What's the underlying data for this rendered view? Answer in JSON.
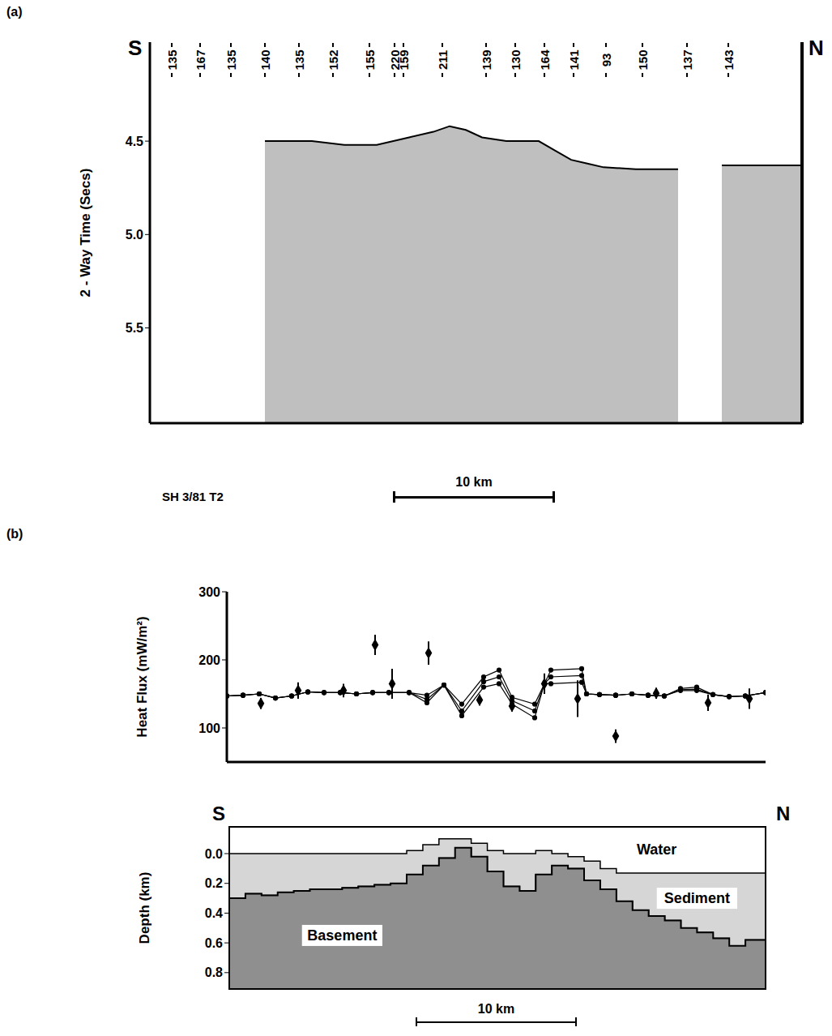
{
  "chart_data": [
    {
      "type": "seismic_section",
      "panel": "(a)",
      "y_label": "2 - Way Time (Secs)",
      "left_label": "S",
      "right_label": "N",
      "xlim": [
        0,
        40.25
      ],
      "ylim": [
        3.97,
        6.01
      ],
      "yticks": [
        4.5,
        {
          "value": 5,
          "label": "5.0"
        },
        5.5
      ],
      "tick_labels": "y",
      "site_labels": {
        "x": [
          1.35,
          3.1,
          5.0,
          7.1,
          9.2,
          11.3,
          13.55,
          15.1,
          15.65,
          18.05,
          20.75,
          22.55,
          24.35,
          26.15,
          28.15,
          30.4,
          33.15,
          35.7
        ],
        "values": [
          135,
          167,
          135,
          140,
          135,
          152,
          155,
          220,
          159,
          211,
          139,
          130,
          164,
          141,
          93,
          150,
          137,
          143
        ]
      },
      "seafloor": {
        "color": "#000000",
        "x": [
          7.1,
          8,
          10,
          12,
          14,
          16,
          17.5,
          18.5,
          19.5,
          20.5,
          22,
          24,
          25,
          26,
          27,
          28,
          30,
          32.6,
          33,
          35.3,
          36,
          38,
          40.25
        ],
        "values": [
          4.5,
          4.5,
          4.5,
          4.52,
          4.52,
          4.48,
          4.45,
          4.42,
          4.44,
          4.48,
          4.5,
          4.5,
          4.55,
          4.6,
          4.62,
          4.64,
          4.65,
          4.65,
          null,
          4.63,
          4.63,
          4.63,
          4.63
        ]
      },
      "profile_name": "SH 3/81 T2",
      "scale_bar": {
        "length": 10,
        "label": "10 km"
      }
    },
    {
      "type": "scatter_line",
      "panel": "(b)",
      "y_label": "Heat Flux (mW/m²)",
      "xlim": [
        0,
        33.25
      ],
      "ylim": [
        50,
        300
      ],
      "yticks": [
        100,
        200,
        300
      ],
      "tick_labels": "y",
      "measurements": {
        "color": "#000000",
        "marker": "diamond",
        "x": [
          2.1,
          4.4,
          7.2,
          9.15,
          10.2,
          12.45,
          15.6,
          17.6,
          19.6,
          21.65,
          24.0,
          26.5,
          29.7,
          32.25
        ],
        "values": [
          136,
          155,
          155,
          222,
          165,
          210,
          141,
          132,
          165,
          143,
          88,
          151,
          137,
          143
        ],
        "errors": [
          8,
          12,
          10,
          15,
          22,
          17,
          8,
          8,
          15,
          27,
          10,
          8,
          12,
          15
        ]
      },
      "model": {
        "x": [
          0,
          1,
          2,
          3,
          4,
          5,
          6,
          7,
          8,
          9,
          10,
          11.25,
          12.35,
          13.4,
          14.5,
          15.85,
          16.8,
          17.6,
          19.0,
          19.6,
          20.0,
          21.9,
          22.2,
          23,
          24,
          25,
          26,
          27,
          28,
          29,
          30,
          31,
          32,
          33.25
        ],
        "series": [
          {
            "color": "#000000",
            "marker": "circle",
            "values": [
              147,
              148,
              150,
              144,
              147,
              153,
              152,
              152,
              150,
              152,
              152,
              152,
              148,
              163,
              135,
              175,
              185,
              145,
              135,
              165,
              185,
              187,
              150,
              149,
              148,
              150,
              148,
              147,
              158,
              160,
              149,
              146,
              147,
              152
            ]
          },
          {
            "color": "#000000",
            "marker": "circle",
            "values": [
              147,
              148,
              150,
              144,
              147,
              153,
              152,
              152,
              150,
              152,
              152,
              152,
              142,
              163,
              125,
              168,
              175,
              140,
              125,
              165,
              175,
              177,
              150,
              149,
              148,
              150,
              148,
              147,
              156,
              157,
              149,
              146,
              147,
              152
            ]
          },
          {
            "color": "#000000",
            "marker": "circle",
            "values": [
              147,
              148,
              150,
              144,
              147,
              153,
              152,
              152,
              150,
              152,
              152,
              152,
              137,
              163,
              118,
              160,
              165,
              135,
              115,
              165,
              165,
              167,
              150,
              149,
              148,
              150,
              148,
              147,
              155,
              155,
              149,
              146,
              147,
              152
            ]
          }
        ]
      }
    },
    {
      "type": "area",
      "y_label": "Depth (km)",
      "left_label": "S",
      "right_label": "N",
      "xlim": [
        0,
        33.25
      ],
      "ylim": [
        -0.18,
        0.91
      ],
      "yticks": [
        {
          "value": 0,
          "label": "0.0"
        },
        0.2,
        0.4,
        0.6,
        0.8
      ],
      "tick_labels": "y",
      "x": [
        0,
        1,
        2,
        3,
        4,
        5,
        6,
        7,
        8,
        9,
        10,
        11,
        12,
        13,
        14,
        15,
        16,
        17,
        18,
        19,
        20,
        21,
        22,
        23,
        24,
        25,
        26,
        27,
        28,
        29,
        30,
        31,
        32,
        33,
        33.25
      ],
      "layers": [
        {
          "name": "Water",
          "color": "#ffffff"
        },
        {
          "name": "Sediment",
          "color": "#d6d6d6",
          "values": [
            0,
            0,
            0,
            0,
            0,
            0,
            0,
            0,
            0,
            0,
            0,
            -0.02,
            -0.06,
            -0.1,
            -0.1,
            -0.07,
            -0.02,
            0,
            0,
            -0.02,
            0,
            0.02,
            0.05,
            0.1,
            0.13,
            0.13,
            0.13,
            0.13,
            0.13,
            0.13,
            0.13,
            0.13,
            0.13,
            0.13,
            0.13
          ]
        },
        {
          "name": "Basement",
          "color": "#8f8f8f",
          "values": [
            0.3,
            0.27,
            0.28,
            0.26,
            0.25,
            0.24,
            0.24,
            0.23,
            0.22,
            0.21,
            0.2,
            0.14,
            0.08,
            0.03,
            -0.04,
            0.02,
            0.12,
            0.22,
            0.25,
            0.14,
            0.08,
            0.1,
            0.18,
            0.24,
            0.32,
            0.38,
            0.42,
            0.45,
            0.5,
            0.53,
            0.57,
            0.62,
            0.58,
            0.58,
            0.58
          ]
        }
      ],
      "scale_bar": {
        "length": 10,
        "label": "10 km"
      }
    }
  ]
}
